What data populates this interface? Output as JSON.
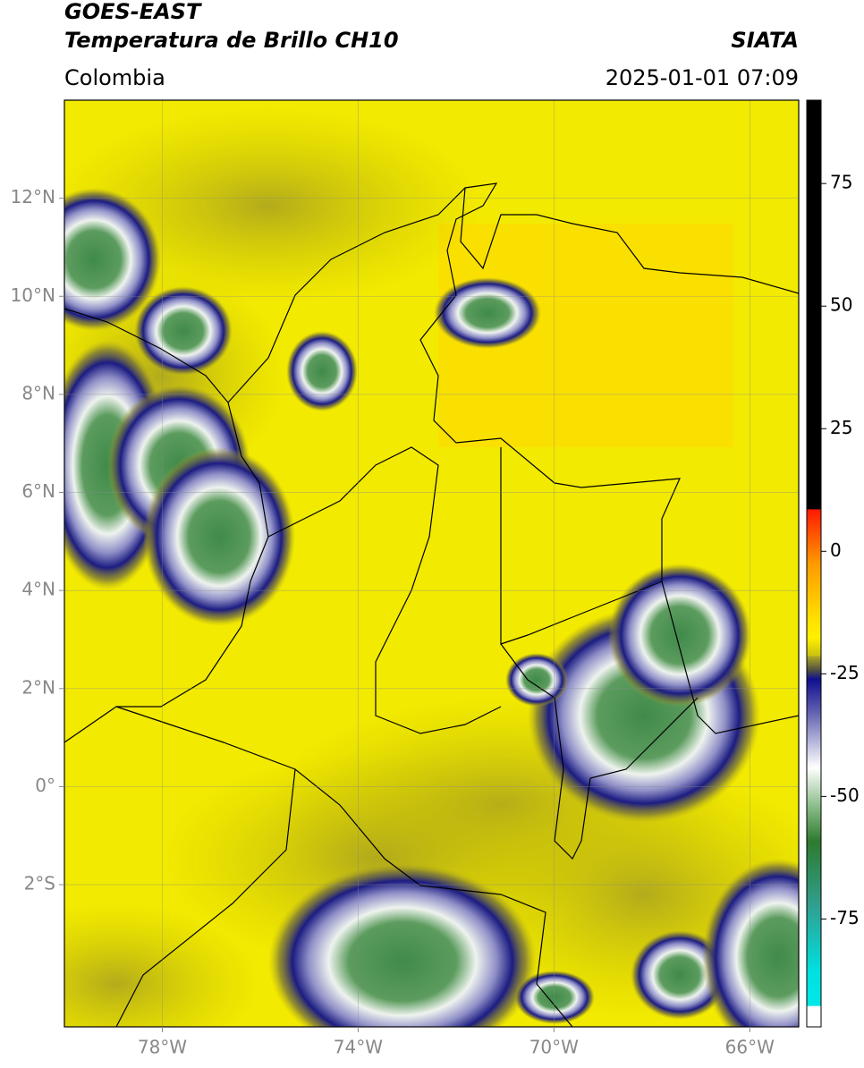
{
  "header": {
    "title_line1": "GOES-EAST",
    "title_line2": "Temperatura de Brillo CH10",
    "source": "SIATA",
    "region": "Colombia",
    "datetime": "2025-01-01 07:09"
  },
  "map": {
    "xlim": [
      -80,
      -65
    ],
    "ylim": [
      -4.9,
      14
    ],
    "xticks": [
      {
        "value": -78,
        "label": "78°W"
      },
      {
        "value": -74,
        "label": "74°W"
      },
      {
        "value": -70,
        "label": "70°W"
      },
      {
        "value": -66,
        "label": "66°W"
      }
    ],
    "yticks": [
      {
        "value": 12,
        "label": "12°N"
      },
      {
        "value": 10,
        "label": "10°N"
      },
      {
        "value": 8,
        "label": "8°N"
      },
      {
        "value": 6,
        "label": "6°N"
      },
      {
        "value": 4,
        "label": "4°N"
      },
      {
        "value": 2,
        "label": "2°N"
      },
      {
        "value": 0,
        "label": "0°"
      },
      {
        "value": -2,
        "label": "2°S"
      }
    ]
  },
  "colorbar": {
    "lim": [
      -97,
      92
    ],
    "ticks": [
      75,
      50,
      25,
      0,
      -25,
      -50,
      -75
    ]
  }
}
